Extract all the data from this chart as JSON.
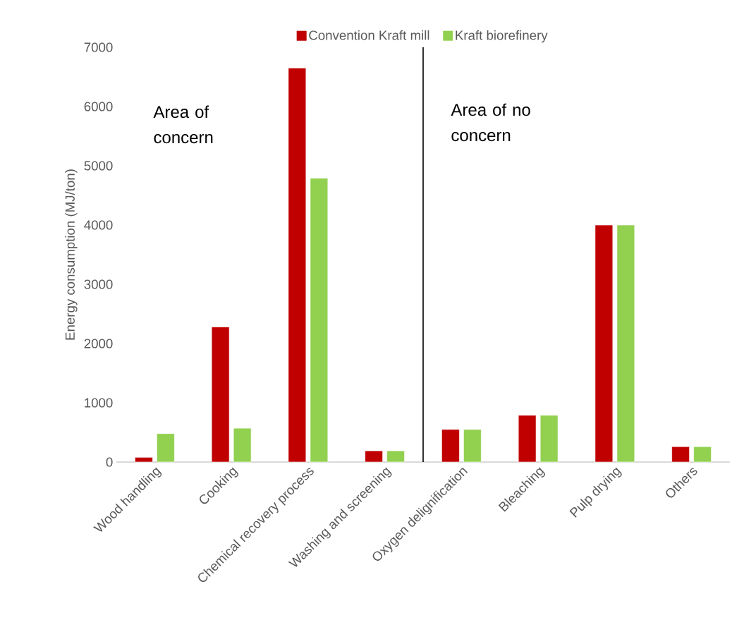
{
  "chart_data": {
    "type": "bar",
    "ylabel": "Energy consumption (MJ/ton)",
    "categories": [
      "Wood handling",
      "Cooking",
      "Chemical recovery process",
      "Washing and screening",
      "Oxygen delignification",
      "Bleaching",
      "Pulp drying",
      "Others"
    ],
    "series": [
      {
        "name": "Convention Kraft mill",
        "color": "#c00000",
        "values": [
          80,
          2280,
          6650,
          190,
          550,
          790,
          4000,
          260
        ]
      },
      {
        "name": "Kraft biorefinery",
        "color": "#92d050",
        "values": [
          480,
          570,
          4790,
          190,
          550,
          790,
          4000,
          260
        ]
      }
    ],
    "ylim": [
      0,
      7000
    ],
    "yticks": [
      0,
      1000,
      2000,
      3000,
      4000,
      5000,
      6000,
      7000
    ],
    "annotations": [
      "Area of concern",
      "Area of no concern"
    ],
    "grid": false,
    "legend": "top"
  }
}
